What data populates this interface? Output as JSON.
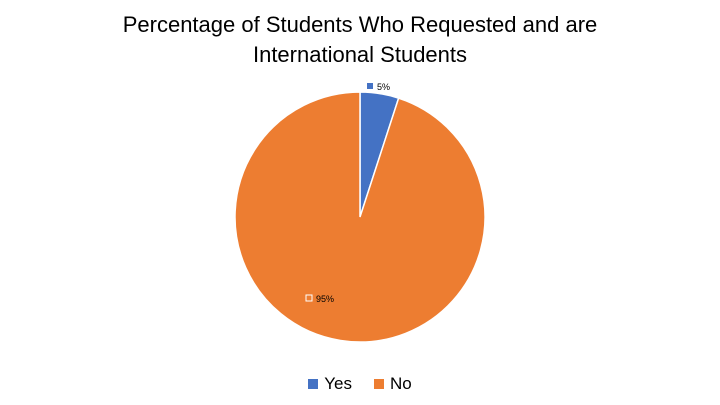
{
  "chart_data": {
    "type": "pie",
    "title_lines": [
      "Percentage of Students Who Requested and are",
      "International Students"
    ],
    "categories": [
      "Yes",
      "No"
    ],
    "values": [
      5,
      95
    ],
    "data_labels": [
      "5%",
      "95%"
    ],
    "colors": [
      "#4472C4",
      "#ED7D31"
    ],
    "legend_position": "bottom"
  }
}
